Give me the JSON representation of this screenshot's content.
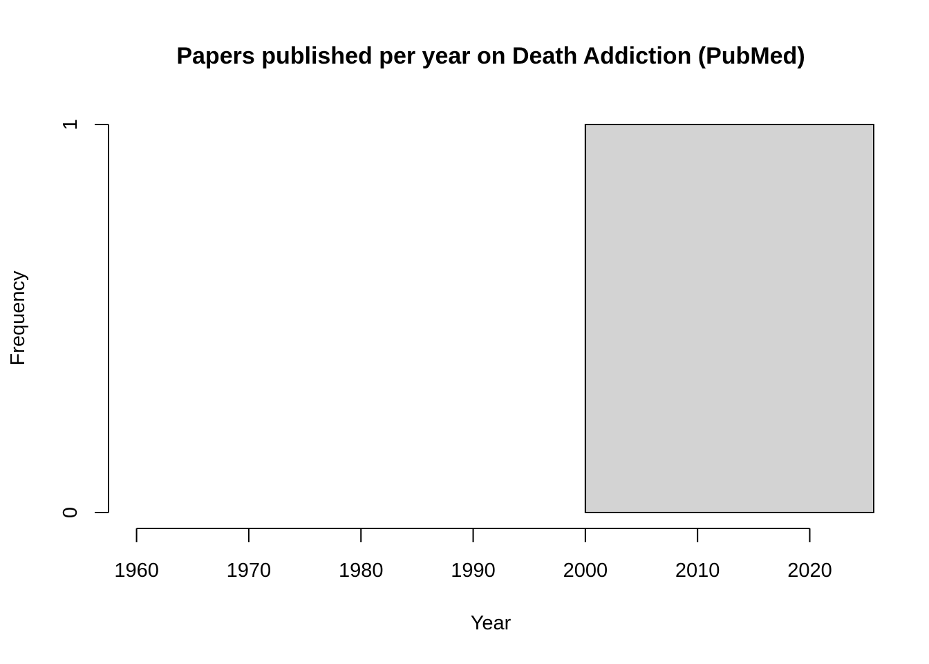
{
  "chart_data": {
    "type": "bar",
    "title": "Papers published per year on Death Addiction (PubMed)",
    "xlabel": "Year",
    "ylabel": "Frequency",
    "xlim": [
      1957.5,
      2025.7
    ],
    "ylim": [
      0,
      1
    ],
    "x_ticks": [
      1960,
      1970,
      1980,
      1990,
      2000,
      2010,
      2020
    ],
    "y_ticks": [
      0,
      1
    ],
    "bins": [
      {
        "start": 2000,
        "end": 2025.7,
        "value": 1
      }
    ],
    "bar_fill": "#d3d3d3",
    "bar_stroke": "#000000",
    "grid": false,
    "legend": "none"
  }
}
